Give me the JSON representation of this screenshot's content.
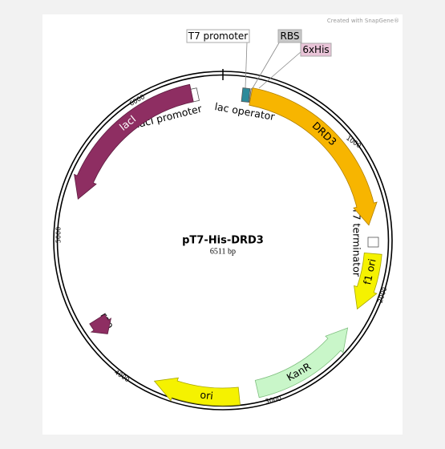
{
  "watermark": "Created with SnapGene®",
  "map": {
    "name": "pT7-His-DRD3",
    "size": "6511 bp"
  },
  "features": [
    "lacI",
    "lacI promoter",
    "lac operator",
    "T7 promoter",
    "RBS",
    "6xHis",
    "DRD3",
    "T7 terminator",
    "f1 ori",
    "KanR",
    "ori",
    "rop"
  ],
  "ticks": [
    "1000",
    "2000",
    "3000",
    "4000",
    "5000",
    "6000"
  ]
}
